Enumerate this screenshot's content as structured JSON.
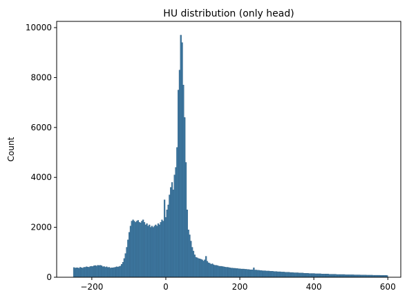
{
  "chart_data": {
    "type": "bar",
    "title": "HU distribution (only head)",
    "xlabel": "",
    "ylabel": "Count",
    "xlim": [
      -295,
      635
    ],
    "ylim": [
      0,
      10250
    ],
    "xticks": [
      -200,
      0,
      200,
      400,
      600
    ],
    "xtick_labels": [
      "−200",
      "0",
      "200",
      "400",
      "600"
    ],
    "yticks": [
      0,
      2000,
      4000,
      6000,
      8000,
      10000
    ],
    "ytick_labels": [
      "0",
      "2000",
      "4000",
      "6000",
      "8000",
      "10000"
    ],
    "grid": false,
    "bin_width": 3.4,
    "bar_color": "#3f7aa3",
    "bar_edge_color": "#2c5a7d",
    "bins": [
      [
        -250,
        390
      ],
      [
        -246.6,
        370
      ],
      [
        -243.2,
        380
      ],
      [
        -239.8,
        380
      ],
      [
        -236.4,
        360
      ],
      [
        -233,
        400
      ],
      [
        -229.6,
        380
      ],
      [
        -226.2,
        370
      ],
      [
        -222.8,
        400
      ],
      [
        -219.4,
        400
      ],
      [
        -216,
        420
      ],
      [
        -212.6,
        410
      ],
      [
        -209.2,
        400
      ],
      [
        -205.8,
        430
      ],
      [
        -202.4,
        440
      ],
      [
        -199,
        430
      ],
      [
        -195.6,
        460
      ],
      [
        -192.2,
        470
      ],
      [
        -188.8,
        450
      ],
      [
        -185.4,
        480
      ],
      [
        -182,
        470
      ],
      [
        -178.6,
        480
      ],
      [
        -175.2,
        460
      ],
      [
        -171.8,
        420
      ],
      [
        -168.4,
        430
      ],
      [
        -165,
        400
      ],
      [
        -161.6,
        420
      ],
      [
        -158.2,
        390
      ],
      [
        -154.8,
        400
      ],
      [
        -151.4,
        370
      ],
      [
        -148,
        380
      ],
      [
        -144.6,
        380
      ],
      [
        -141.2,
        390
      ],
      [
        -137.8,
        400
      ],
      [
        -134.4,
        420
      ],
      [
        -131,
        410
      ],
      [
        -127.6,
        430
      ],
      [
        -124.2,
        450
      ],
      [
        -120.8,
        520
      ],
      [
        -117.4,
        600
      ],
      [
        -114,
        750
      ],
      [
        -110.6,
        950
      ],
      [
        -107.2,
        1200
      ],
      [
        -103.8,
        1500
      ],
      [
        -100.4,
        1800
      ],
      [
        -97,
        2050
      ],
      [
        -93.6,
        2250
      ],
      [
        -90.2,
        2300
      ],
      [
        -86.8,
        2250
      ],
      [
        -83.4,
        2200
      ],
      [
        -80,
        2250
      ],
      [
        -76.6,
        2280
      ],
      [
        -73.2,
        2200
      ],
      [
        -69.8,
        2180
      ],
      [
        -66.4,
        2250
      ],
      [
        -63,
        2300
      ],
      [
        -59.6,
        2200
      ],
      [
        -56.2,
        2100
      ],
      [
        -52.8,
        2150
      ],
      [
        -49.4,
        2050
      ],
      [
        -46,
        2100
      ],
      [
        -42.6,
        2000
      ],
      [
        -39.2,
        2050
      ],
      [
        -35.8,
        2000
      ],
      [
        -32.4,
        2050
      ],
      [
        -29,
        2100
      ],
      [
        -25.6,
        2050
      ],
      [
        -22.2,
        2150
      ],
      [
        -18.8,
        2100
      ],
      [
        -15.4,
        2200
      ],
      [
        -12,
        2300
      ],
      [
        -8.6,
        2250
      ],
      [
        -5.2,
        3100
      ],
      [
        -1.8,
        2400
      ],
      [
        1.6,
        2700
      ],
      [
        5,
        2900
      ],
      [
        8.4,
        3300
      ],
      [
        11.8,
        3600
      ],
      [
        15.2,
        3800
      ],
      [
        18.6,
        3500
      ],
      [
        22,
        4100
      ],
      [
        25.4,
        4400
      ],
      [
        28.8,
        5200
      ],
      [
        32.2,
        7500
      ],
      [
        35.6,
        8300
      ],
      [
        39,
        9700
      ],
      [
        42.4,
        9400
      ],
      [
        45.8,
        7700
      ],
      [
        49.2,
        6400
      ],
      [
        52.6,
        4600
      ],
      [
        56,
        2700
      ],
      [
        59.4,
        1900
      ],
      [
        62.8,
        1700
      ],
      [
        66.2,
        1450
      ],
      [
        69.6,
        1200
      ],
      [
        73,
        1050
      ],
      [
        76.4,
        900
      ],
      [
        79.8,
        800
      ],
      [
        83.2,
        780
      ],
      [
        86.6,
        750
      ],
      [
        90,
        740
      ],
      [
        93.4,
        720
      ],
      [
        96.8,
        700
      ],
      [
        100.2,
        650
      ],
      [
        103.6,
        700
      ],
      [
        107,
        840
      ],
      [
        110.4,
        640
      ],
      [
        113.8,
        580
      ],
      [
        117.2,
        560
      ],
      [
        120.6,
        520
      ],
      [
        124,
        540
      ],
      [
        127.4,
        500
      ],
      [
        130.8,
        480
      ],
      [
        134.2,
        480
      ],
      [
        137.6,
        470
      ],
      [
        141,
        450
      ],
      [
        144.4,
        440
      ],
      [
        147.8,
        440
      ],
      [
        151.2,
        430
      ],
      [
        154.6,
        420
      ],
      [
        158,
        410
      ],
      [
        161.4,
        400
      ],
      [
        164.8,
        400
      ],
      [
        168.2,
        390
      ],
      [
        171.6,
        380
      ],
      [
        175,
        370
      ],
      [
        178.4,
        370
      ],
      [
        181.8,
        360
      ],
      [
        185.2,
        360
      ],
      [
        188.6,
        350
      ],
      [
        192,
        350
      ],
      [
        195.4,
        340
      ],
      [
        198.8,
        340
      ],
      [
        202.2,
        330
      ],
      [
        205.6,
        330
      ],
      [
        209,
        330
      ],
      [
        212.4,
        320
      ],
      [
        215.8,
        320
      ],
      [
        219.2,
        310
      ],
      [
        222.6,
        310
      ],
      [
        226,
        300
      ],
      [
        229.4,
        300
      ],
      [
        232.8,
        300
      ],
      [
        236.2,
        380
      ],
      [
        239.6,
        290
      ],
      [
        243,
        290
      ],
      [
        246.4,
        280
      ],
      [
        249.8,
        280
      ],
      [
        253.2,
        270
      ],
      [
        256.6,
        270
      ],
      [
        260,
        260
      ],
      [
        263.4,
        260
      ],
      [
        266.8,
        260
      ],
      [
        270.2,
        250
      ],
      [
        273.6,
        250
      ],
      [
        277,
        250
      ],
      [
        280.4,
        240
      ],
      [
        283.8,
        240
      ],
      [
        287.2,
        240
      ],
      [
        290.6,
        230
      ],
      [
        294,
        230
      ],
      [
        297.4,
        230
      ],
      [
        300.8,
        220
      ],
      [
        304.2,
        220
      ],
      [
        307.6,
        220
      ],
      [
        311,
        210
      ],
      [
        314.4,
        210
      ],
      [
        317.8,
        210
      ],
      [
        321.2,
        200
      ],
      [
        324.6,
        200
      ],
      [
        328,
        200
      ],
      [
        331.4,
        200
      ],
      [
        334.8,
        190
      ],
      [
        338.2,
        190
      ],
      [
        341.6,
        190
      ],
      [
        345,
        180
      ],
      [
        348.4,
        180
      ],
      [
        351.8,
        180
      ],
      [
        355.2,
        180
      ],
      [
        358.6,
        170
      ],
      [
        362,
        170
      ],
      [
        365.4,
        170
      ],
      [
        368.8,
        170
      ],
      [
        372.2,
        160
      ],
      [
        375.6,
        160
      ],
      [
        379,
        160
      ],
      [
        382.4,
        160
      ],
      [
        385.8,
        150
      ],
      [
        389.2,
        150
      ],
      [
        392.6,
        150
      ],
      [
        396,
        150
      ],
      [
        399.4,
        150
      ],
      [
        402.8,
        140
      ],
      [
        406.2,
        140
      ],
      [
        409.6,
        140
      ],
      [
        413,
        140
      ],
      [
        416.4,
        140
      ],
      [
        419.8,
        130
      ],
      [
        423.2,
        130
      ],
      [
        426.6,
        130
      ],
      [
        430,
        130
      ],
      [
        433.4,
        130
      ],
      [
        436.8,
        130
      ],
      [
        440.2,
        120
      ],
      [
        443.6,
        120
      ],
      [
        447,
        120
      ],
      [
        450.4,
        120
      ],
      [
        453.8,
        120
      ],
      [
        457.2,
        120
      ],
      [
        460.6,
        110
      ],
      [
        464,
        110
      ],
      [
        467.4,
        110
      ],
      [
        470.8,
        110
      ],
      [
        474.2,
        110
      ],
      [
        477.6,
        110
      ],
      [
        481,
        110
      ],
      [
        484.4,
        100
      ],
      [
        487.8,
        100
      ],
      [
        491.2,
        100
      ],
      [
        494.6,
        100
      ],
      [
        498,
        100
      ],
      [
        501.4,
        100
      ],
      [
        504.8,
        100
      ],
      [
        508.2,
        95
      ],
      [
        511.6,
        95
      ],
      [
        515,
        95
      ],
      [
        518.4,
        95
      ],
      [
        521.8,
        95
      ],
      [
        525.2,
        90
      ],
      [
        528.6,
        90
      ],
      [
        532,
        90
      ],
      [
        535.4,
        90
      ],
      [
        538.8,
        90
      ],
      [
        542.2,
        85
      ],
      [
        545.6,
        85
      ],
      [
        549,
        85
      ],
      [
        552.4,
        85
      ],
      [
        555.8,
        85
      ],
      [
        559.2,
        80
      ],
      [
        562.6,
        80
      ],
      [
        566,
        80
      ],
      [
        569.4,
        80
      ],
      [
        572.8,
        80
      ],
      [
        576.2,
        80
      ],
      [
        579.6,
        75
      ],
      [
        583,
        75
      ],
      [
        586.4,
        75
      ],
      [
        589.8,
        75
      ],
      [
        593.2,
        75
      ],
      [
        596.6,
        70
      ]
    ]
  }
}
